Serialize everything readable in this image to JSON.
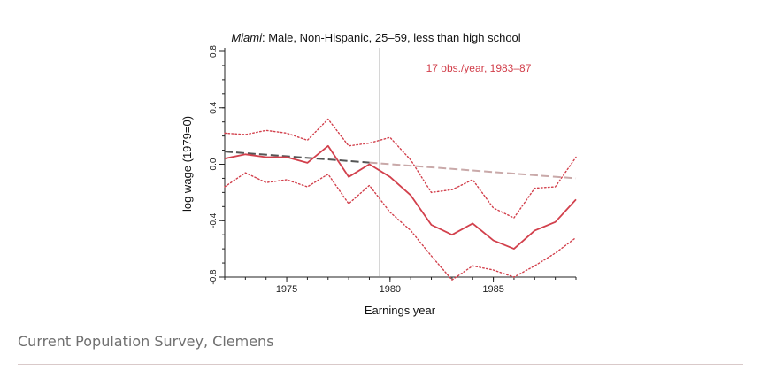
{
  "caption": "Current Population Survey, Clemens",
  "chart_data": {
    "type": "line",
    "title_city": "Miami",
    "title_rest": ": Male, Non-Hispanic, 25–59, less than high school",
    "annotation": "17 obs./year, 1983–87",
    "xlabel": "Earnings year",
    "ylabel": "log wage (1979=0)",
    "xlim": [
      1972,
      1989
    ],
    "ylim": [
      -0.8,
      0.8
    ],
    "xticks": [
      1975,
      1980,
      1985
    ],
    "xtick_labels": [
      "1975",
      "1980",
      "1985"
    ],
    "yticks": [
      0.8,
      0.4,
      0.0,
      -0.4,
      -0.8
    ],
    "ytick_labels": [
      "0.8",
      "0.4",
      "0.0",
      "-0.4",
      "-0.8"
    ],
    "reference_line_x": 1979.5,
    "colors": {
      "main": "#d2404c",
      "trend_past": "#555555",
      "trend_future": "#c9a9a9",
      "vline": "#8a8a8a"
    },
    "x": [
      1972,
      1973,
      1974,
      1975,
      1976,
      1977,
      1978,
      1979,
      1980,
      1981,
      1982,
      1983,
      1984,
      1985,
      1986,
      1987,
      1988,
      1989
    ],
    "series": [
      {
        "name": "log wage",
        "style": "solid",
        "values": [
          0.04,
          0.07,
          0.05,
          0.05,
          0.01,
          0.13,
          -0.09,
          0.0,
          -0.09,
          -0.22,
          -0.43,
          -0.5,
          -0.42,
          -0.54,
          -0.6,
          -0.47,
          -0.41,
          -0.25
        ]
      },
      {
        "name": "upper CI",
        "style": "dotted",
        "values": [
          0.22,
          0.21,
          0.24,
          0.22,
          0.17,
          0.32,
          0.13,
          0.15,
          0.19,
          0.03,
          -0.2,
          -0.18,
          -0.11,
          -0.31,
          -0.38,
          -0.17,
          -0.16,
          0.05
        ]
      },
      {
        "name": "lower CI",
        "style": "dotted",
        "values": [
          -0.16,
          -0.06,
          -0.13,
          -0.11,
          -0.16,
          -0.07,
          -0.28,
          -0.15,
          -0.34,
          -0.47,
          -0.65,
          -0.82,
          -0.72,
          -0.75,
          -0.8,
          -0.72,
          -0.63,
          -0.52
        ]
      },
      {
        "name": "pre-1980 trend",
        "style": "dashed",
        "x_from": 1972,
        "x_to": 1989,
        "values_at_ends": [
          0.09,
          -0.1
        ]
      }
    ]
  }
}
